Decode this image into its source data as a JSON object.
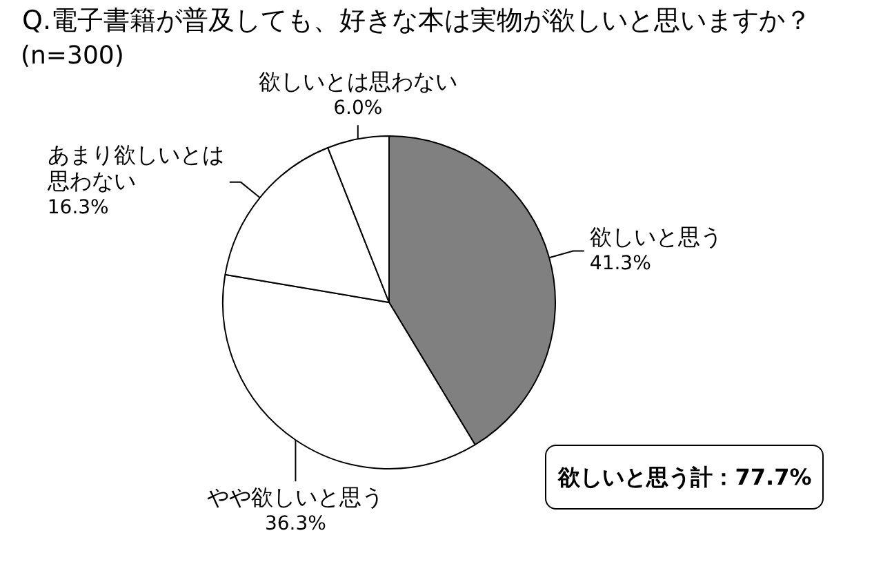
{
  "chart_data": {
    "type": "pie",
    "title": "Q.電子書籍が普及しても、好きな本は実物が欲しいと思いますか？",
    "subtitle": "(n=300)",
    "categories": [
      "欲しいと思う",
      "やや欲しいと思う",
      "あまり欲しいとは思わない",
      "欲しいとは思わない"
    ],
    "values": [
      41.3,
      36.3,
      16.3,
      6.0
    ],
    "colors": [
      "#808080",
      "#ffffff",
      "#ffffff",
      "#ffffff"
    ],
    "value_labels": [
      "41.3%",
      "36.3%",
      "16.3%",
      "6.0%"
    ],
    "annotations": [
      "欲しいと思う計：77.7%"
    ]
  }
}
